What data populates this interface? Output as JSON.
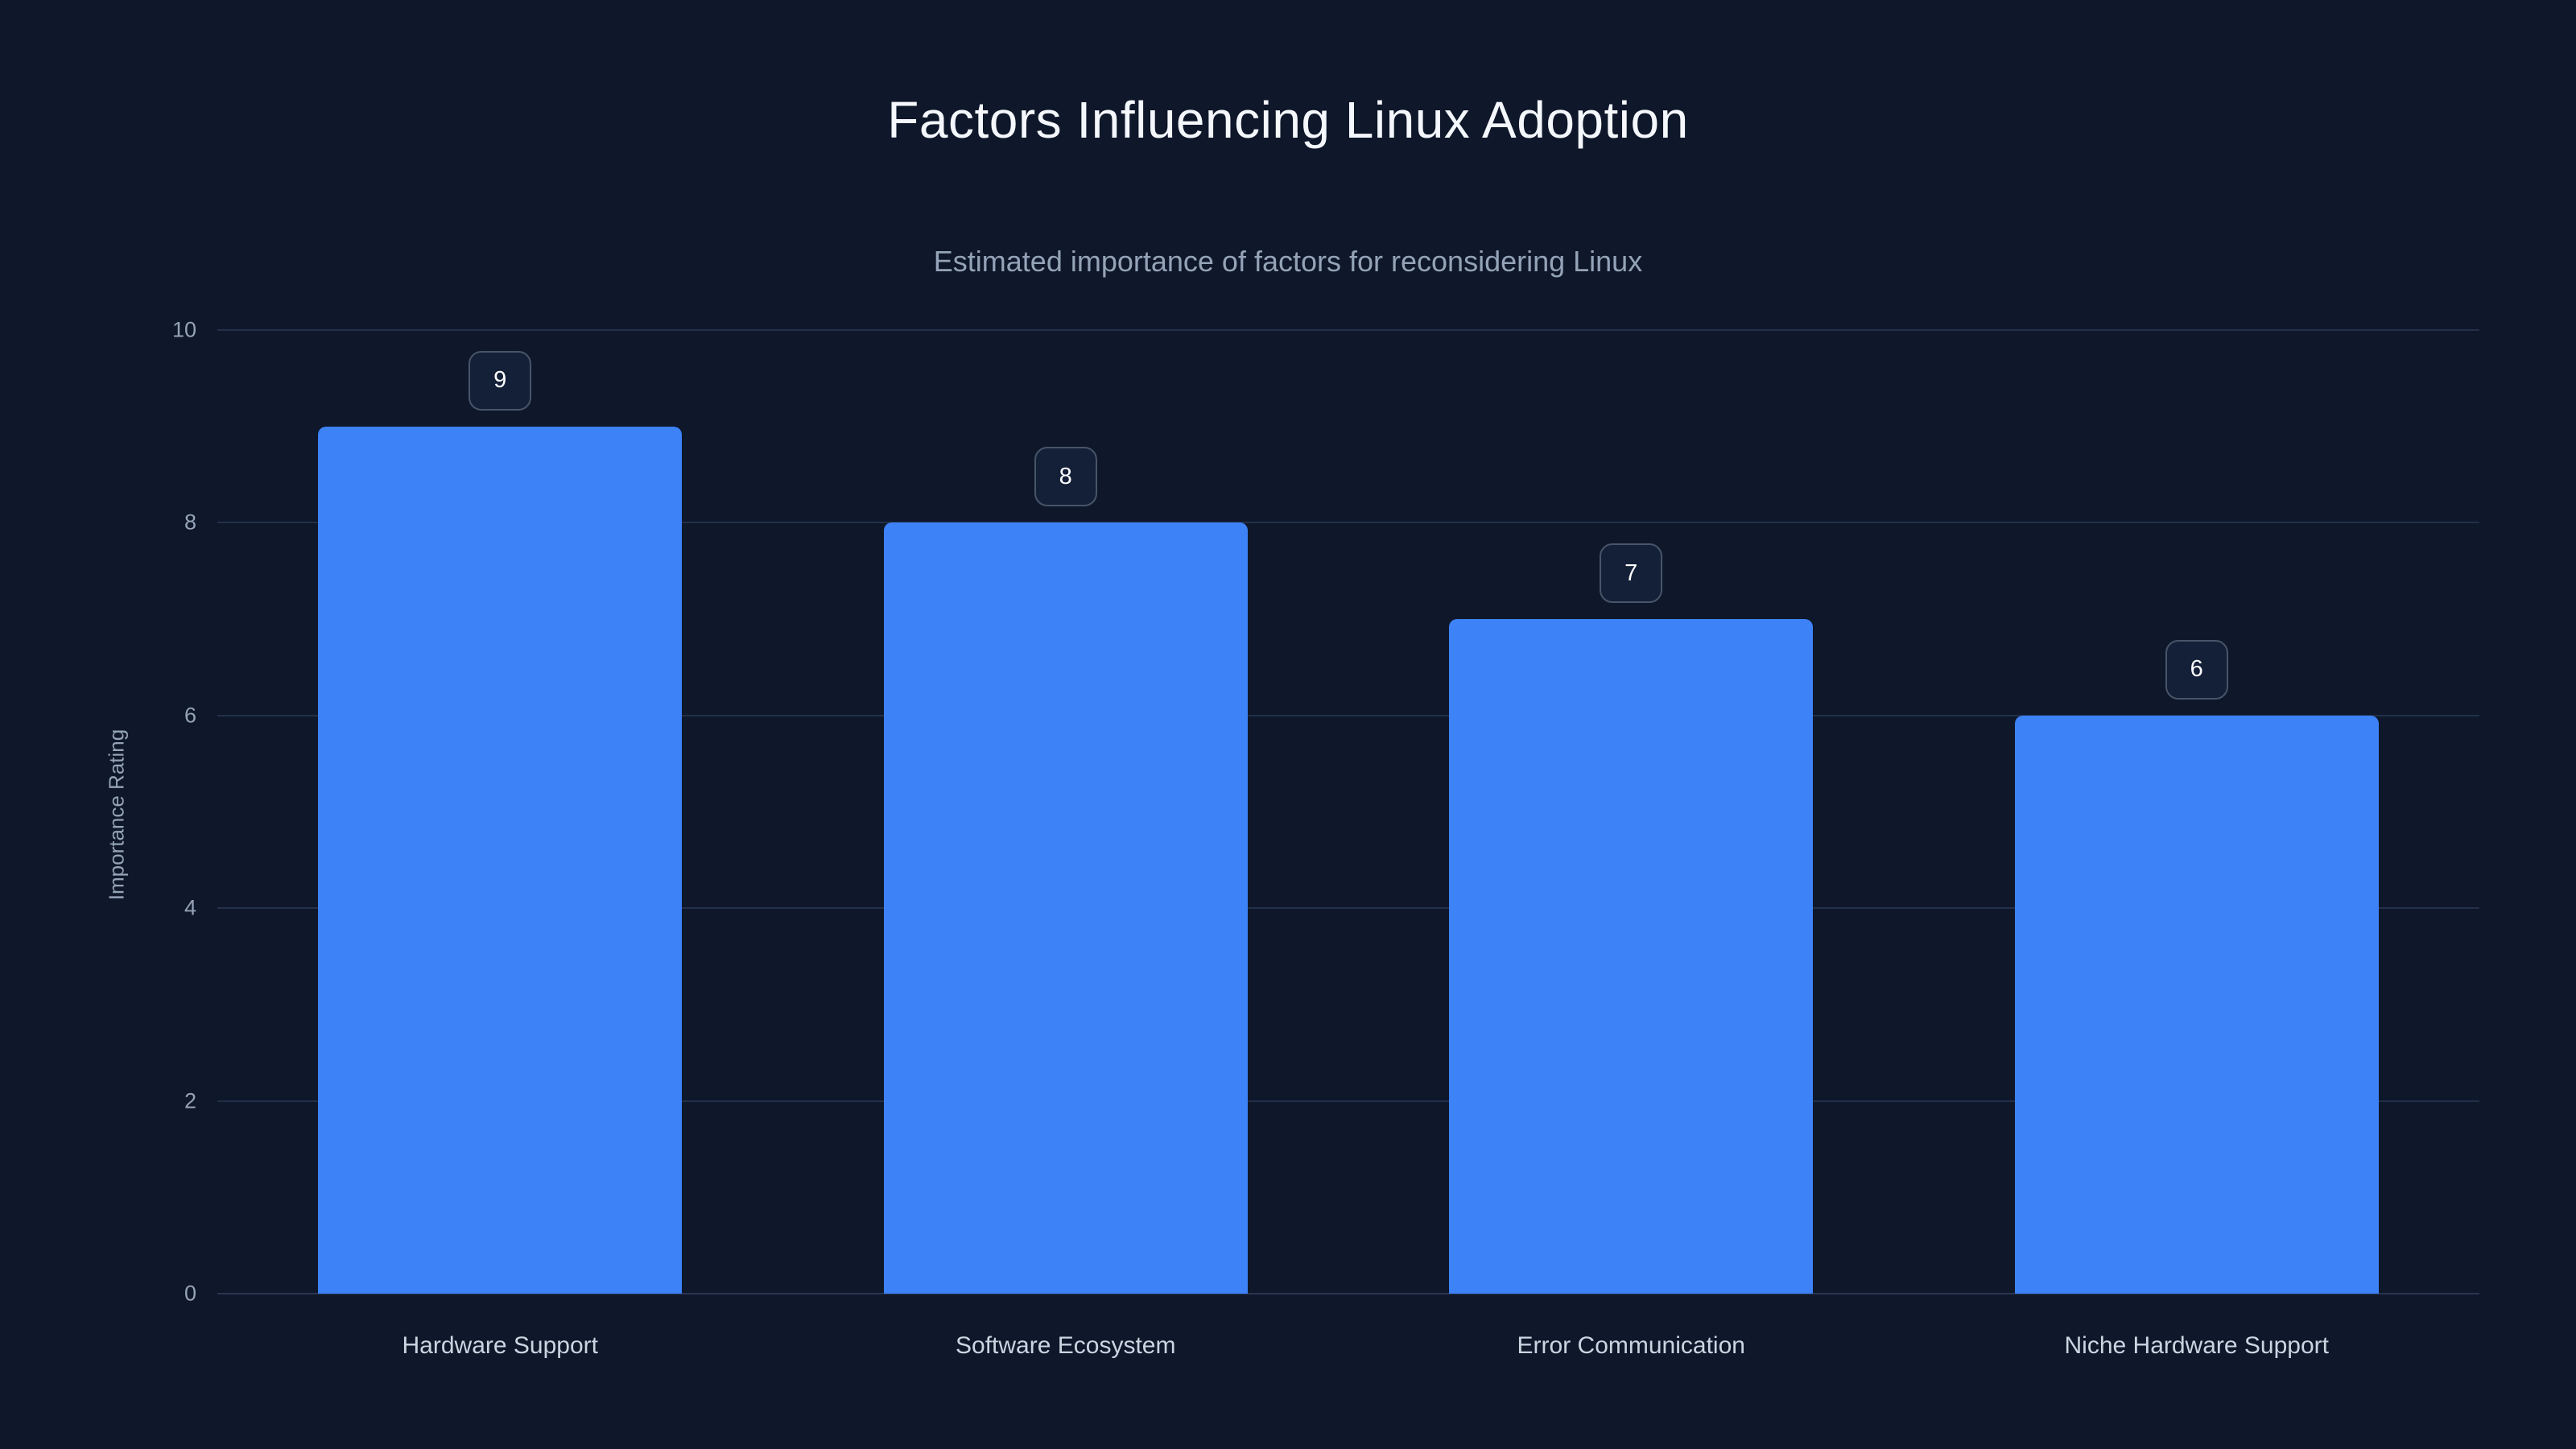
{
  "page": {
    "background_color": "#0f172a"
  },
  "chart_data": {
    "type": "bar",
    "title": "Factors Influencing Linux Adoption",
    "subtitle": "Estimated importance of factors for reconsidering Linux",
    "categories": [
      "Hardware Support",
      "Software Ecosystem",
      "Error Communication",
      "Niche Hardware Support"
    ],
    "values": [
      9,
      8,
      7,
      6
    ],
    "value_labels": [
      "9",
      "8",
      "7",
      "6"
    ],
    "xlabel": "",
    "ylabel": "Importance Rating",
    "ylim": [
      0,
      10
    ],
    "yticks": [
      0,
      2,
      4,
      6,
      8,
      10
    ],
    "grid": true,
    "legend": false,
    "bar_color": "#3d82f6",
    "colors": {
      "title_text": "#f4f7fb",
      "subtitle_text": "#94a3b8",
      "tick_text": "#94a3b8",
      "category_text": "#cbd5e1",
      "gridline": "#223049",
      "badge_border": "#475569",
      "badge_background": "#141f38",
      "badge_text": "#ffffff"
    }
  }
}
